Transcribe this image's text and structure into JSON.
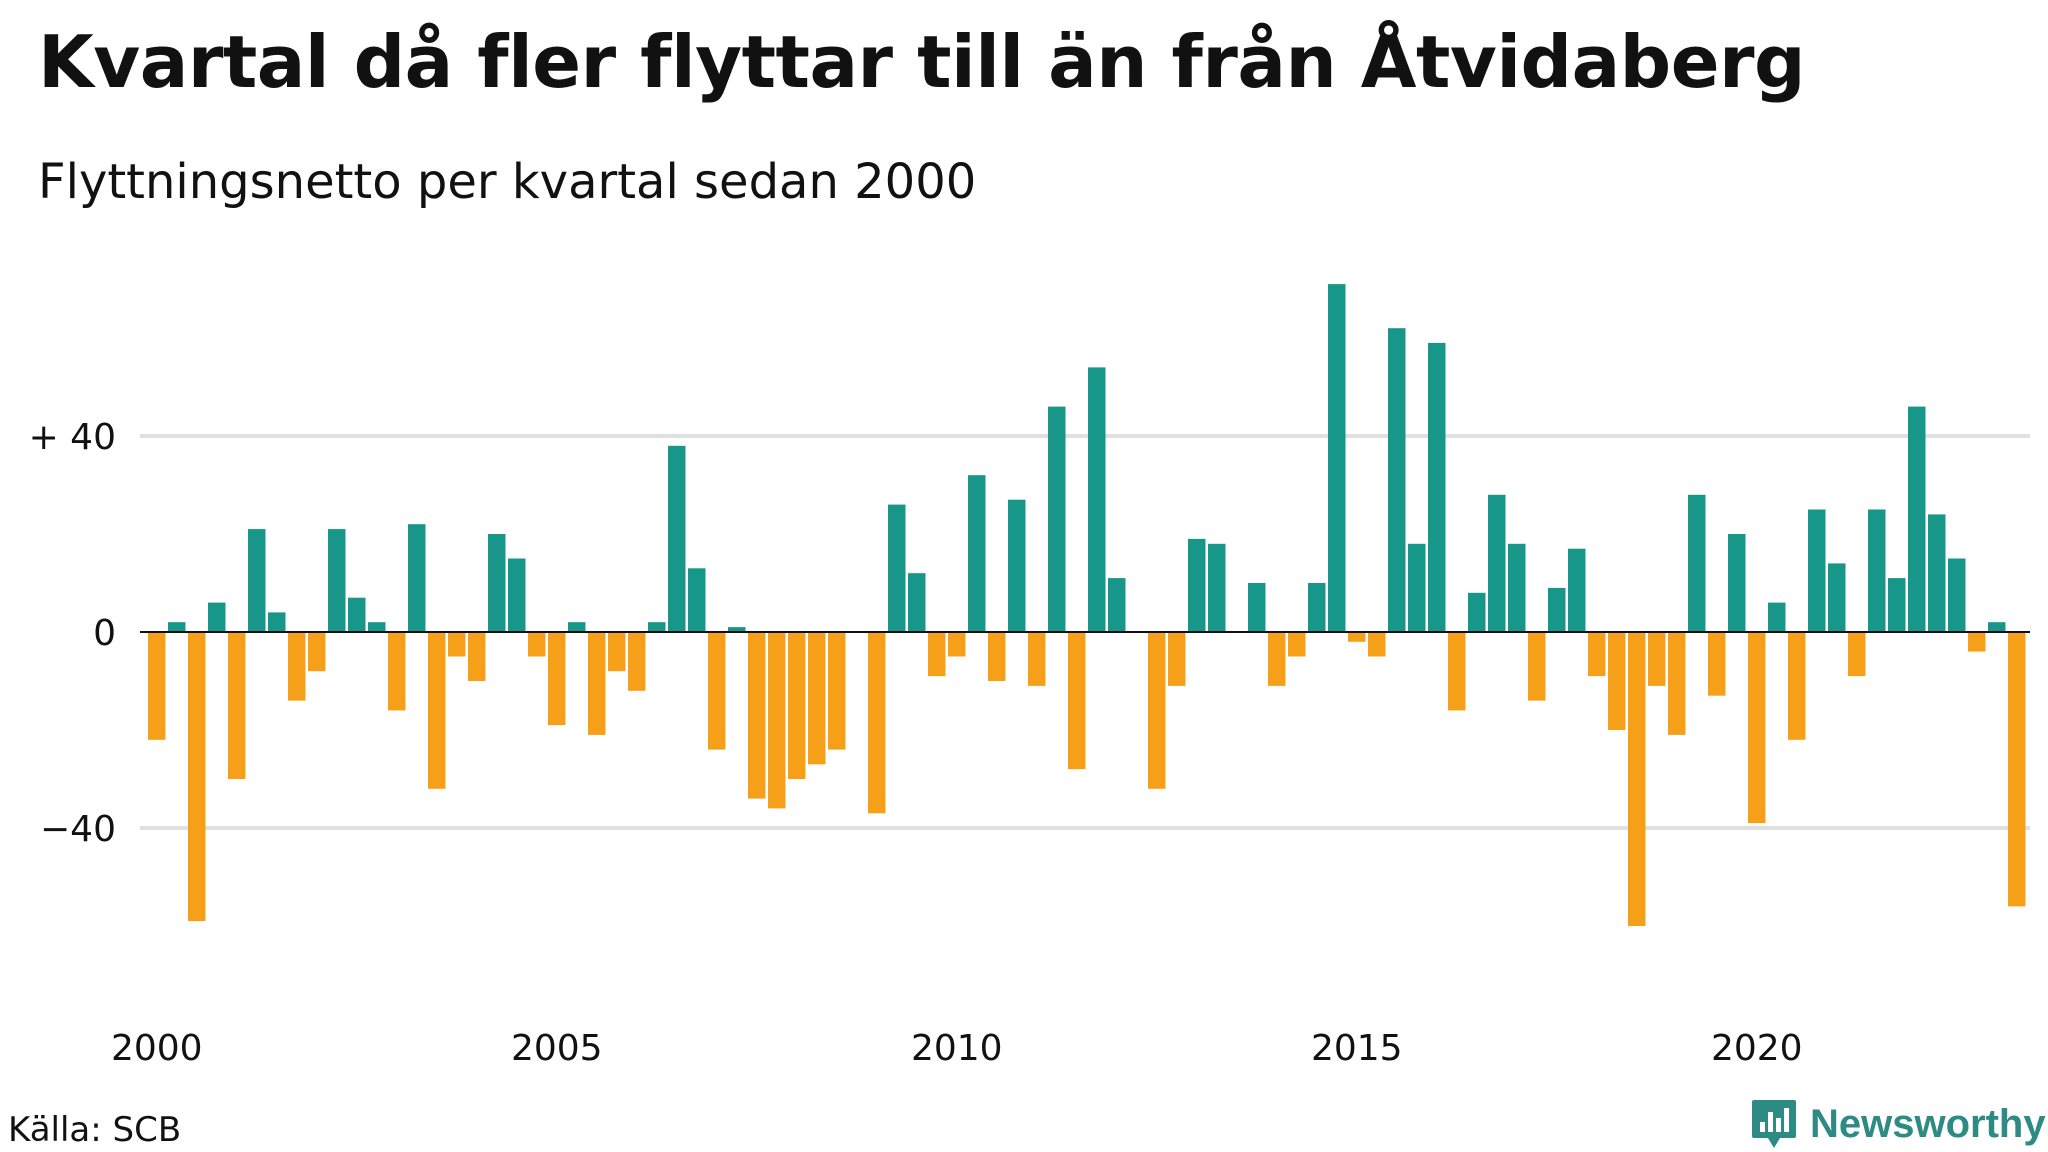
{
  "header": {
    "title": "Kvartal då fler flyttar till än från Åtvidaberg",
    "subtitle": "Flyttningsnetto per kvartal sedan 2000"
  },
  "footer": {
    "source": "Källa: SCB",
    "brand": "Newsworthy",
    "brand_icon": "bar-chart-speech-bubble-icon"
  },
  "colors": {
    "positive": "#17968a",
    "negative": "#f6a01a",
    "grid": "#e0e0e0",
    "axis": "#111111",
    "brand": "#2e8b83"
  },
  "chart_data": {
    "type": "bar",
    "title": "Kvartal då fler flyttar till än från Åtvidaberg",
    "subtitle": "Flyttningsnetto per kvartal sedan 2000",
    "xlabel": "",
    "ylabel": "",
    "x_ticks": [
      "2000",
      "2005",
      "2010",
      "2015",
      "2020"
    ],
    "y_ticks": [
      {
        "value": 40,
        "label": "+ 40"
      },
      {
        "value": 0,
        "label": "0"
      },
      {
        "value": -40,
        "label": "−40"
      }
    ],
    "ylim": [
      -76,
      72
    ],
    "grid": true,
    "legend": "none",
    "start_year": 2000,
    "start_quarter": 1,
    "values": [
      -22,
      2,
      -59,
      6,
      -30,
      21,
      4,
      -14,
      -8,
      21,
      7,
      2,
      -16,
      22,
      -32,
      -5,
      -10,
      20,
      15,
      -5,
      -19,
      2,
      -21,
      -8,
      -12,
      2,
      38,
      13,
      -24,
      1,
      -34,
      -36,
      -30,
      -27,
      -24,
      0,
      -37,
      26,
      12,
      -9,
      -5,
      32,
      -10,
      27,
      -11,
      46,
      -28,
      54,
      11,
      0,
      -32,
      -11,
      19,
      18,
      0,
      10,
      -11,
      -5,
      10,
      71,
      -2,
      -5,
      62,
      18,
      59,
      -16,
      8,
      28,
      18,
      -14,
      9,
      17,
      -9,
      -20,
      -60,
      -11,
      -21,
      28,
      -13,
      20,
      -39,
      6,
      -22,
      25,
      14,
      -9,
      25,
      11,
      46,
      24,
      15,
      -4,
      2,
      -56
    ]
  }
}
